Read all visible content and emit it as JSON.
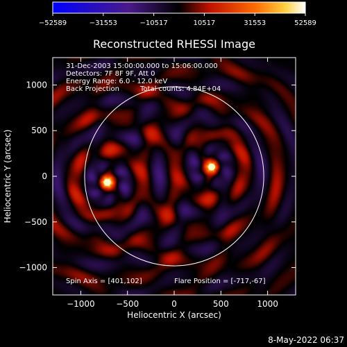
{
  "chart_data": {
    "type": "heatmap",
    "title": "Reconstructed RHESSI Image",
    "xlabel": "Heliocentric X (arcsec)",
    "ylabel": "Heliocentric Y (arcsec)",
    "xlim": [
      -1300,
      1300
    ],
    "ylim": [
      -1300,
      1300
    ],
    "x_ticks": [
      -1000,
      -500,
      0,
      500,
      1000
    ],
    "y_ticks": [
      -1000,
      -500,
      0,
      500,
      1000
    ],
    "colorbar": {
      "ticks": [
        -52589,
        -31553,
        -10517,
        10517,
        31553,
        52589
      ],
      "range": [
        -52589,
        52589
      ]
    },
    "annotations": [
      "31-Dec-2003 15:00:00.000 to 15:06:00.000",
      "Detectors: 7F 8F 9F, Att 0",
      "Energy Range: 6.0 - 12.0 keV",
      "Back Projection",
      "Total counts: 4.84E+04"
    ],
    "spin_axis_text": "Spin Axis = [401,102]",
    "flare_position_text": "Flare Position = [-717,-67]",
    "solar_disk": {
      "center": [
        0,
        0
      ],
      "radius": 970
    },
    "sources": [
      {
        "label": "flare",
        "x": -717,
        "y": -67,
        "peak": 52589
      },
      {
        "label": "spin-axis",
        "x": 401,
        "y": 102,
        "peak": 45000
      }
    ]
  },
  "timestamp": "8-May-2022 06:37",
  "colors": {
    "background": "#000000",
    "axes": "#ffffff",
    "colormap": [
      "#0000ff",
      "#1a0030",
      "#5a1a80",
      "#000000",
      "#8a0000",
      "#ff2000",
      "#ff9000",
      "#ffff60",
      "#ffffff"
    ]
  }
}
